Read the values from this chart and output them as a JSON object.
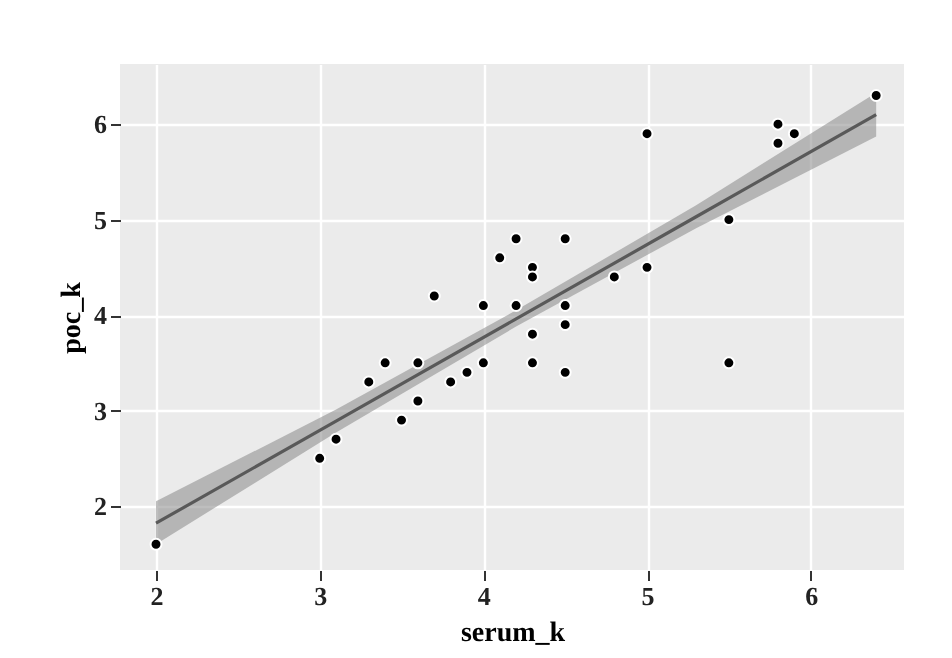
{
  "chart_data": {
    "type": "scatter",
    "xlabel": "serum_k",
    "ylabel": "poc_k",
    "xlim": [
      1.78,
      6.57
    ],
    "ylim": [
      1.33,
      6.63
    ],
    "xticks": [
      2,
      3,
      4,
      5,
      6
    ],
    "yticks": [
      2,
      3,
      4,
      5,
      6
    ],
    "grid": true,
    "series": [
      {
        "type": "line",
        "color": "#595959",
        "x": [
          2,
          3.1,
          4.2,
          5.3,
          6.4
        ],
        "values": [
          1.82,
          2.89,
          3.96,
          5.03,
          6.1
        ],
        "lower": [
          1.6,
          2.77,
          3.88,
          4.91,
          5.87
        ],
        "upper": [
          2.05,
          3.01,
          4.05,
          5.15,
          6.33
        ]
      },
      {
        "marker": "circle",
        "color": "#000000",
        "x": [
          2.0,
          3.0,
          3.1,
          3.3,
          3.4,
          3.5,
          3.6,
          3.6,
          3.7,
          3.8,
          3.9,
          4.0,
          4.0,
          4.1,
          4.2,
          4.2,
          4.3,
          4.3,
          4.3,
          4.3,
          4.5,
          4.5,
          4.5,
          4.5,
          4.8,
          5.0,
          5.0,
          5.5,
          5.5,
          5.8,
          5.8,
          5.9,
          6.4
        ],
        "values": [
          1.6,
          2.5,
          2.7,
          3.3,
          3.5,
          2.9,
          3.1,
          3.5,
          4.2,
          3.3,
          3.4,
          3.5,
          4.1,
          4.6,
          4.8,
          4.1,
          4.5,
          4.4,
          3.8,
          3.5,
          4.8,
          4.1,
          3.9,
          3.4,
          4.4,
          5.9,
          4.5,
          5.0,
          3.5,
          6.0,
          5.8,
          5.9,
          6.3
        ]
      }
    ]
  }
}
